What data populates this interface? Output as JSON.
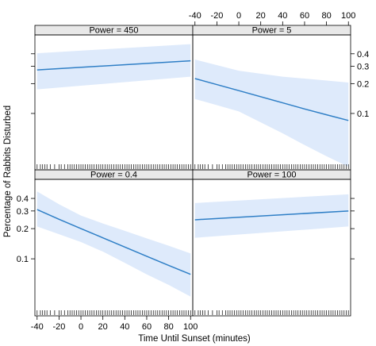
{
  "chart_data": {
    "type": "line",
    "layout": "trellis 2x2",
    "xlabel": "Time Until Sunset (minutes)",
    "ylabel": "Percentage of Rabbits Disturbed",
    "x_ticks": [
      -40,
      -20,
      0,
      20,
      40,
      60,
      80,
      100
    ],
    "xlim": [
      -42,
      102
    ],
    "y_scale": "log",
    "y_ticks": [
      0.1,
      0.2,
      0.3,
      0.4
    ],
    "ylim": [
      0.027,
      0.62
    ],
    "colors": {
      "line": "#2f7fc6",
      "band": "#deeafb",
      "strip": "#e8e8e8",
      "rug": "#222222"
    },
    "panels": [
      {
        "label": "Power = 450",
        "position": "top-left",
        "x": [
          -40,
          100
        ],
        "fit": [
          0.275,
          0.34
        ],
        "lower": [
          0.175,
          0.235
        ],
        "upper": [
          0.405,
          0.5
        ]
      },
      {
        "label": "Power = 5",
        "position": "top-right",
        "x": [
          -40,
          0,
          40,
          60,
          80,
          100
        ],
        "fit": [
          0.225,
          0.17,
          0.128,
          0.111,
          0.097,
          0.085
        ],
        "lower": [
          0.14,
          0.105,
          0.063,
          0.048,
          0.037,
          0.029
        ],
        "upper": [
          0.35,
          0.27,
          0.235,
          0.225,
          0.215,
          0.205
        ]
      },
      {
        "label": "Power = 0.4",
        "position": "bottom-left",
        "x": [
          -40,
          -20,
          0,
          20,
          40,
          60,
          80,
          100
        ],
        "fit": [
          0.31,
          0.248,
          0.2,
          0.162,
          0.131,
          0.106,
          0.086,
          0.07
        ],
        "lower": [
          0.21,
          0.176,
          0.147,
          0.118,
          0.091,
          0.07,
          0.055,
          0.042
        ],
        "upper": [
          0.47,
          0.35,
          0.27,
          0.225,
          0.19,
          0.16,
          0.135,
          0.113
        ]
      },
      {
        "label": "Power = 100",
        "position": "bottom-right",
        "x": [
          -40,
          100
        ],
        "fit": [
          0.245,
          0.3
        ],
        "lower": [
          0.162,
          0.21
        ],
        "upper": [
          0.36,
          0.44
        ]
      }
    ],
    "rug_x": [
      -40,
      -37,
      -35,
      -33,
      -31,
      -28,
      -24,
      -20,
      -18,
      -15,
      -12,
      -10,
      -8,
      -6,
      -4,
      -2,
      0,
      2,
      4,
      6,
      8,
      10,
      12,
      14,
      16,
      18,
      20,
      22,
      24,
      26,
      28,
      30,
      32,
      34,
      36,
      38,
      40,
      42,
      44,
      46,
      48,
      50,
      52,
      54,
      56,
      58,
      60,
      62,
      64,
      66,
      68,
      70,
      72,
      74,
      76,
      78,
      80,
      82,
      84,
      86,
      88,
      90,
      92,
      94,
      96,
      98,
      100
    ]
  }
}
